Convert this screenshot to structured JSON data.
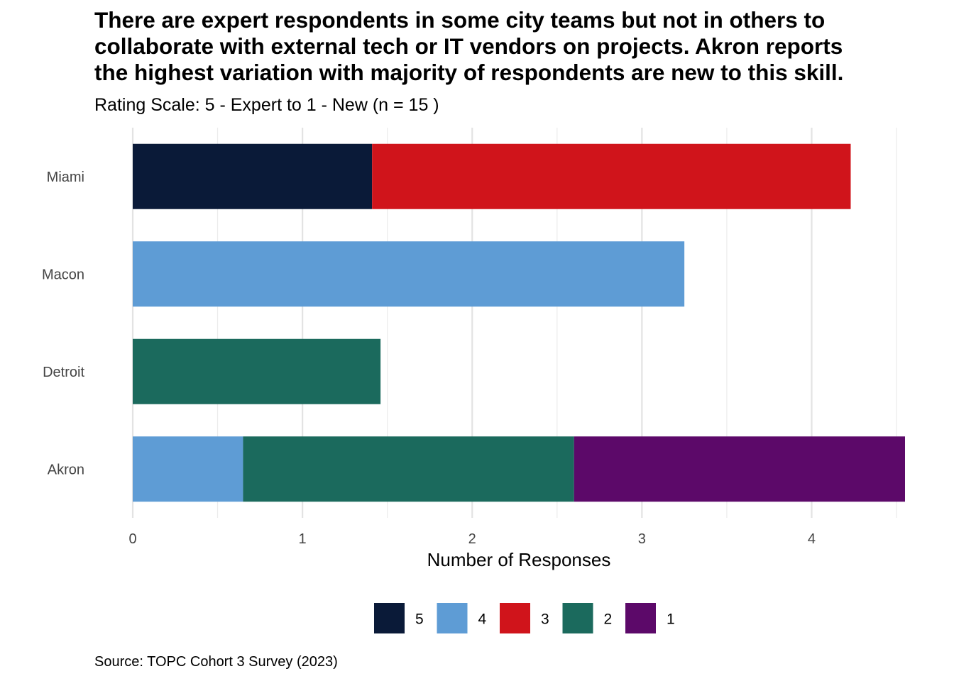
{
  "title_lines": [
    "There are expert respondents in some city teams but not in others to",
    "collaborate with external tech or IT vendors on projects. Akron reports",
    "the highest variation with majority of respondents are new to this skill."
  ],
  "subtitle": "Rating Scale: 5 - Expert to 1 - New (n = 15 )",
  "caption": "Source: TOPC Cohort 3 Survey (2023)",
  "chart_data": {
    "type": "bar",
    "orientation": "horizontal",
    "stacked": true,
    "categories": [
      "Miami",
      "Macon",
      "Detroit",
      "Akron"
    ],
    "xlabel": "Number of Responses",
    "ylabel": "",
    "xlim": [
      0,
      4.55
    ],
    "x_ticks": [
      0,
      1,
      2,
      3,
      4
    ],
    "grid": true,
    "legend_position": "bottom",
    "series": [
      {
        "name": "5",
        "color": "#0A1A38",
        "values": [
          1.41,
          0,
          0,
          0
        ]
      },
      {
        "name": "4",
        "color": "#5E9CD5",
        "values": [
          0,
          3.25,
          0,
          0.65
        ]
      },
      {
        "name": "3",
        "color": "#D0141B",
        "values": [
          2.82,
          0,
          0,
          0
        ]
      },
      {
        "name": "2",
        "color": "#1B6A5D",
        "values": [
          0,
          0,
          1.46,
          1.95
        ]
      },
      {
        "name": "1",
        "color": "#5C0969",
        "values": [
          0,
          0,
          0,
          1.95
        ]
      }
    ]
  }
}
